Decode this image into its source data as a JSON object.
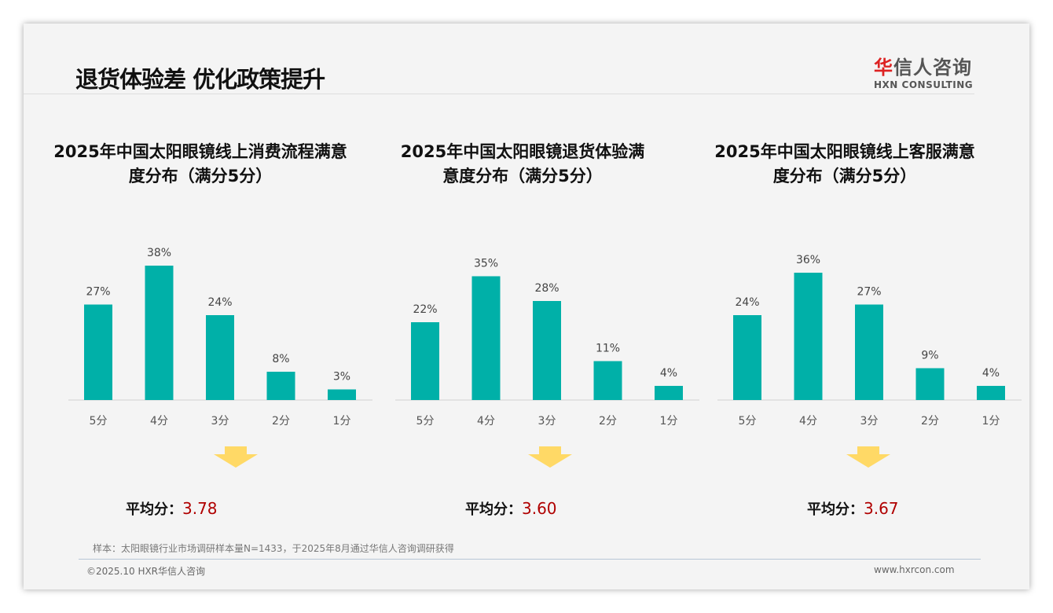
{
  "header": {
    "title": "退货体验差 优化政策提升",
    "logo_cn_first": "华",
    "logo_cn_rest": "信人咨询",
    "logo_en": "HXN CONSULTING"
  },
  "chart_data": [
    {
      "type": "bar",
      "title": "2025年中国太阳眼镜线上消费流程满意度分布（满分5分）",
      "title_lines": [
        "2025年中国太阳眼镜线上消费流程满意",
        "度分布（满分5分）"
      ],
      "categories": [
        "5分",
        "4分",
        "3分",
        "2分",
        "1分"
      ],
      "values": [
        27,
        38,
        24,
        8,
        3
      ],
      "labels": [
        "27%",
        "38%",
        "24%",
        "8%",
        "3%"
      ],
      "avg_label": "平均分：",
      "avg": "3.78"
    },
    {
      "type": "bar",
      "title": "2025年中国太阳眼镜退货体验满意度分布（满分5分）",
      "title_lines": [
        "2025年中国太阳眼镜退货体验满",
        "意度分布（满分5分）"
      ],
      "categories": [
        "5分",
        "4分",
        "3分",
        "2分",
        "1分"
      ],
      "values": [
        22,
        35,
        28,
        11,
        4
      ],
      "labels": [
        "22%",
        "35%",
        "28%",
        "11%",
        "4%"
      ],
      "avg_label": "平均分：",
      "avg": "3.60"
    },
    {
      "type": "bar",
      "title": "2025年中国太阳眼镜线上客服满意度分布（满分5分）",
      "title_lines": [
        "2025年中国太阳眼镜线上客服满意",
        "度分布（满分5分）"
      ],
      "categories": [
        "5分",
        "4分",
        "3分",
        "2分",
        "1分"
      ],
      "values": [
        24,
        36,
        27,
        9,
        4
      ],
      "labels": [
        "24%",
        "36%",
        "27%",
        "9%",
        "4%"
      ],
      "avg_label": "平均分：",
      "avg": "3.67"
    }
  ],
  "colors": {
    "bar": "#00b0a8",
    "arrow": "#ffd966",
    "avg": "#b00000"
  },
  "footer": {
    "note": "样本：太阳眼镜行业市场调研样本量N=1433，于2025年8月通过华信人咨询调研获得",
    "copyright": "©2025.10 HXR华信人咨询",
    "url": "www.hxrcon.com"
  }
}
